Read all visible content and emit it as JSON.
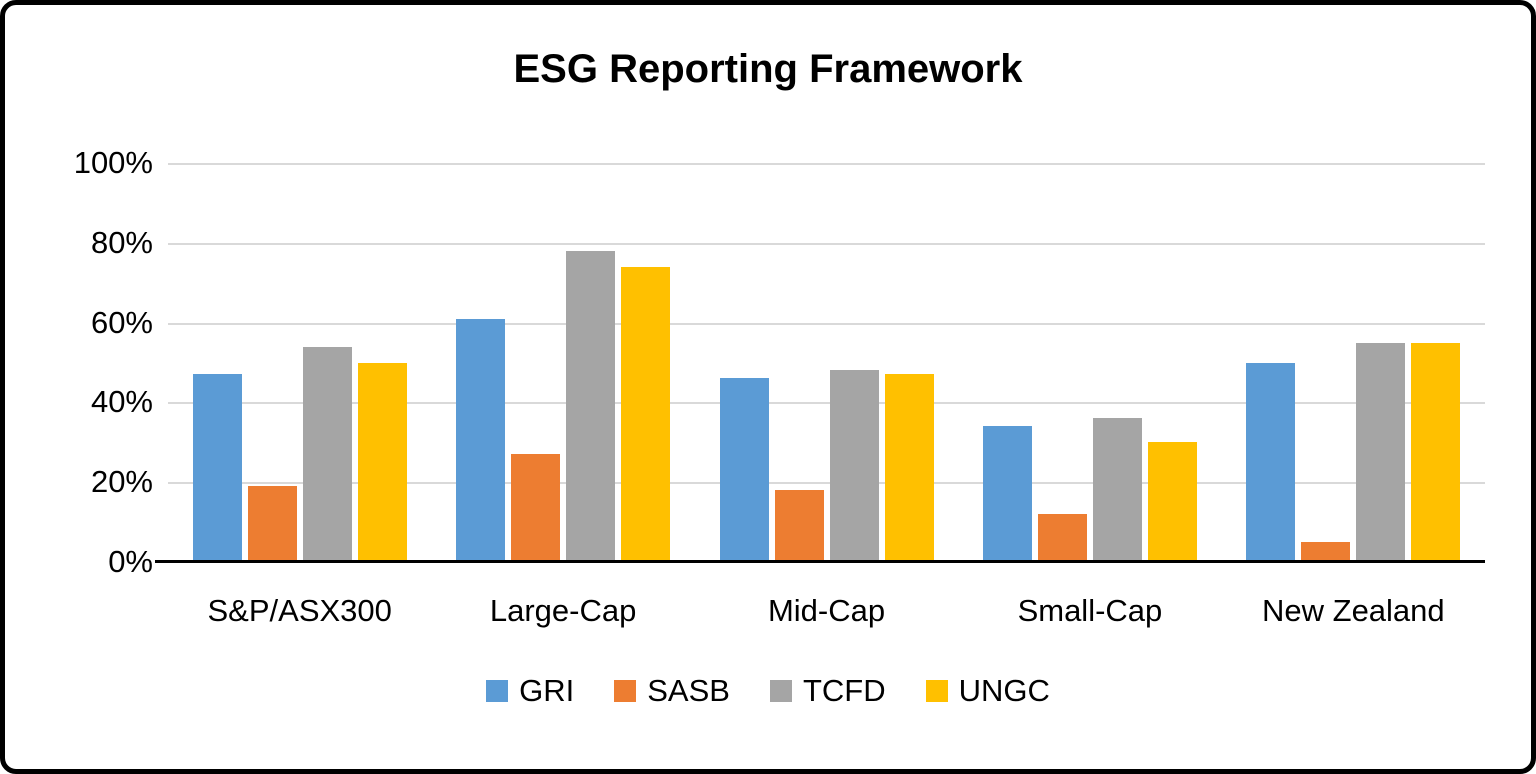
{
  "chart_data": {
    "type": "bar",
    "title": "ESG Reporting Framework",
    "categories": [
      "S&P/ASX300",
      "Large-Cap",
      "Mid-Cap",
      "Small-Cap",
      "New Zealand"
    ],
    "series": [
      {
        "name": "GRI",
        "color": "#5B9BD5",
        "values": [
          47,
          61,
          46,
          34,
          50
        ]
      },
      {
        "name": "SASB",
        "color": "#ED7D31",
        "values": [
          19,
          27,
          18,
          12,
          5
        ]
      },
      {
        "name": "TCFD",
        "color": "#A5A5A5",
        "values": [
          54,
          78,
          48,
          36,
          55
        ]
      },
      {
        "name": "UNGC",
        "color": "#FFC000",
        "values": [
          50,
          74,
          47,
          30,
          55
        ]
      }
    ],
    "ylim": [
      0,
      100
    ],
    "yticks": [
      0,
      20,
      40,
      60,
      80,
      100
    ],
    "ytick_labels": [
      "0%",
      "20%",
      "40%",
      "60%",
      "80%",
      "100%"
    ],
    "xlabel": "",
    "ylabel": "",
    "grid": true,
    "legend_position": "bottom"
  },
  "colors": {
    "gridline": "#D9D9D9",
    "axis": "#000000",
    "text": "#000000",
    "frame_border": "#000000",
    "background": "#FFFFFF"
  }
}
